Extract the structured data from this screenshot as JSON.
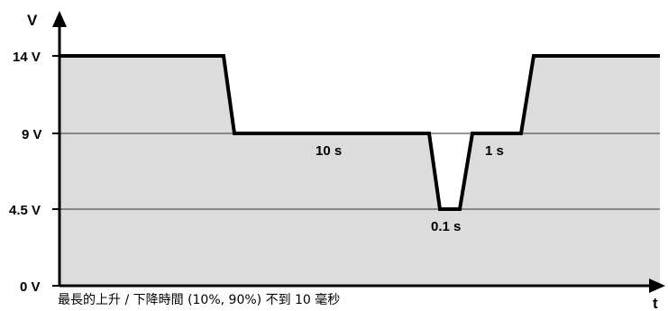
{
  "diagram": {
    "y_axis_label": "V",
    "x_axis_label": "t",
    "levels": [
      "14 V",
      "9 V",
      "4.5 V",
      "0 V"
    ],
    "durations": {
      "long_dip": "10 s",
      "short_dip": "0.1 s",
      "recovery": "1 s"
    },
    "caption": "最長的上升 / 下降時間 (10%, 90%) 不到 10 毫秒",
    "colors": {
      "fill": "#dcdcdc",
      "line": "#000000",
      "grid": "#333333"
    }
  }
}
